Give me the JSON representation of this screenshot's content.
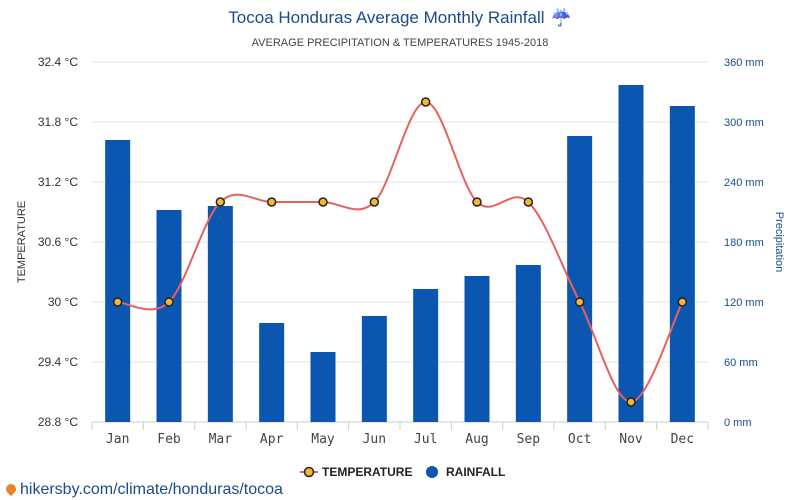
{
  "chart_data": {
    "type": "bar",
    "title": "Tocoa Honduras Average Monthly Rainfall",
    "title_icon": "umbrella-icon",
    "subtitle": "AVERAGE PRECIPITATION & TEMPERATURES 1945-2018",
    "categories": [
      "Jan",
      "Feb",
      "Mar",
      "Apr",
      "May",
      "Jun",
      "Jul",
      "Aug",
      "Sep",
      "Oct",
      "Nov",
      "Dec"
    ],
    "series": [
      {
        "name": "TEMPERATURE",
        "type": "line",
        "axis": "left",
        "color": "#e86060",
        "marker_fill": "#f5b731",
        "values": [
          30,
          30,
          31,
          31,
          31,
          31,
          32,
          31,
          31,
          30,
          29,
          30
        ]
      },
      {
        "name": "RAINFALL",
        "type": "bar",
        "axis": "right",
        "color": "#0a56b0",
        "values": [
          282,
          212,
          216,
          99,
          70,
          106,
          133,
          146,
          157,
          286,
          337,
          316
        ]
      }
    ],
    "ylabel": "TEMPERATURE",
    "ylim": [
      28.8,
      32.4
    ],
    "yticks": [
      "32.4 °C",
      "31.8 °C",
      "31.2 °C",
      "30.6 °C",
      "30 °C",
      "29.4 °C",
      "28.8 °C"
    ],
    "y2label": "Precipitation",
    "y2lim": [
      0,
      360
    ],
    "y2ticks": [
      "360 mm",
      "300 mm",
      "240 mm",
      "180 mm",
      "120 mm",
      "60 mm",
      "0 mm"
    ],
    "grid": true,
    "legend_position": "bottom"
  },
  "source": {
    "icon": "map-pin-icon",
    "text": "hikersby.com/climate/honduras/tocoa"
  }
}
